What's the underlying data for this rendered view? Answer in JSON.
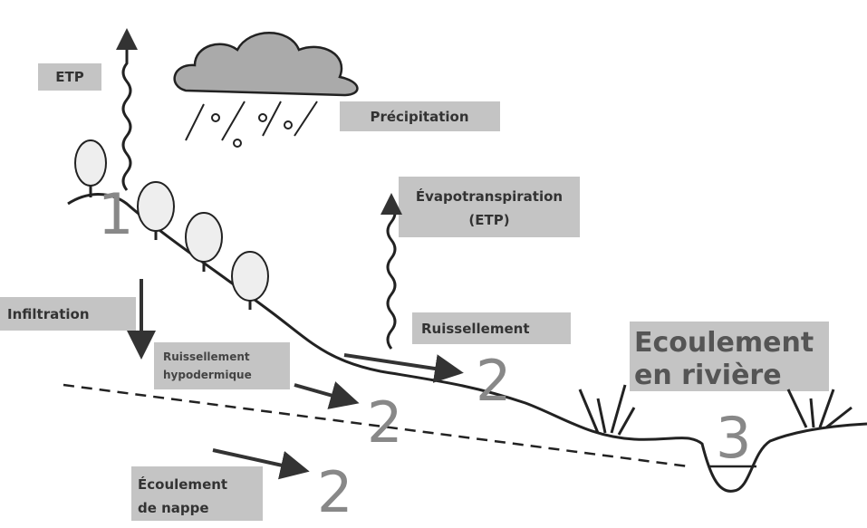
{
  "labels": [
    {
      "lines": [
        "ETP"
      ]
    },
    {
      "lines": [
        "Précipitation"
      ]
    },
    {
      "lines": [
        "Évapotranspiration",
        "(ETP)"
      ]
    },
    {
      "lines": [
        "Infiltration"
      ]
    },
    {
      "lines": [
        "Ruissellement"
      ]
    },
    {
      "lines": [
        "Ruissellement",
        "hypodermique"
      ]
    },
    {
      "lines": [
        "Ecoulement",
        "en rivière"
      ]
    },
    {
      "lines": [
        "Écoulement",
        "de nappe"
      ]
    }
  ],
  "zones": [
    "1",
    "2",
    "2",
    "2",
    "3"
  ]
}
